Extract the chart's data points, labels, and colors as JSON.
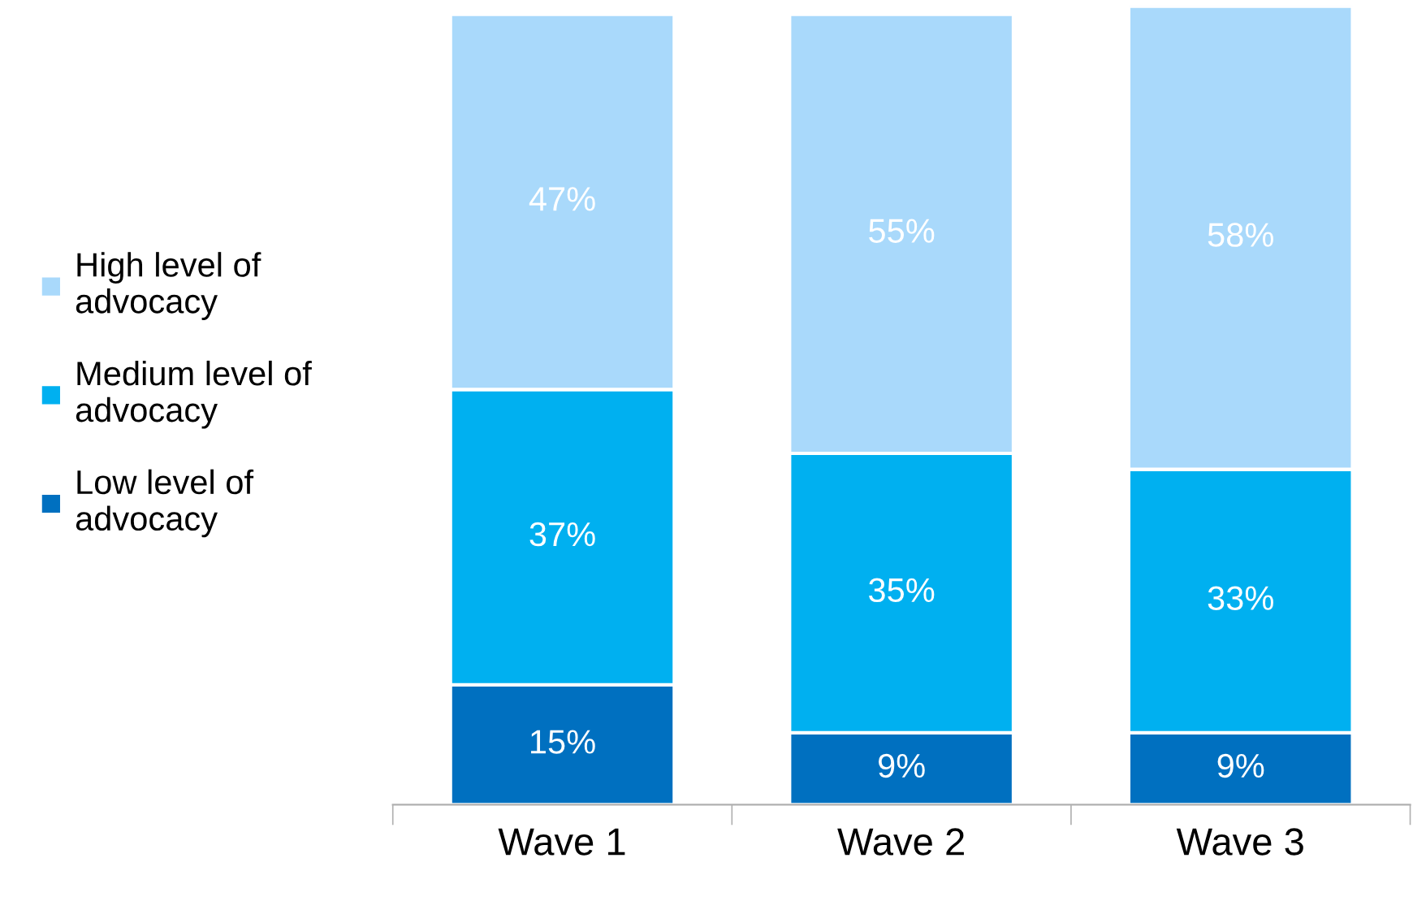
{
  "chart_data": {
    "type": "bar",
    "stacked": true,
    "legend": "left",
    "categories": [
      "Wave 1",
      "Wave 2",
      "Wave 3"
    ],
    "series": [
      {
        "name": "Low level of advocacy",
        "color": "#0070c0",
        "values": [
          15,
          9,
          9
        ],
        "value_labels": [
          "15%",
          "9%",
          "9%"
        ]
      },
      {
        "name": "Medium level of advocacy",
        "color": "#00b0f0",
        "values": [
          37,
          35,
          33
        ],
        "value_labels": [
          "37%",
          "35%",
          "33%"
        ]
      },
      {
        "name": "High level of advocacy",
        "color": "#a9d9fb",
        "values": [
          47,
          55,
          58
        ],
        "value_labels": [
          "47%",
          "55%",
          "58%"
        ]
      }
    ]
  }
}
